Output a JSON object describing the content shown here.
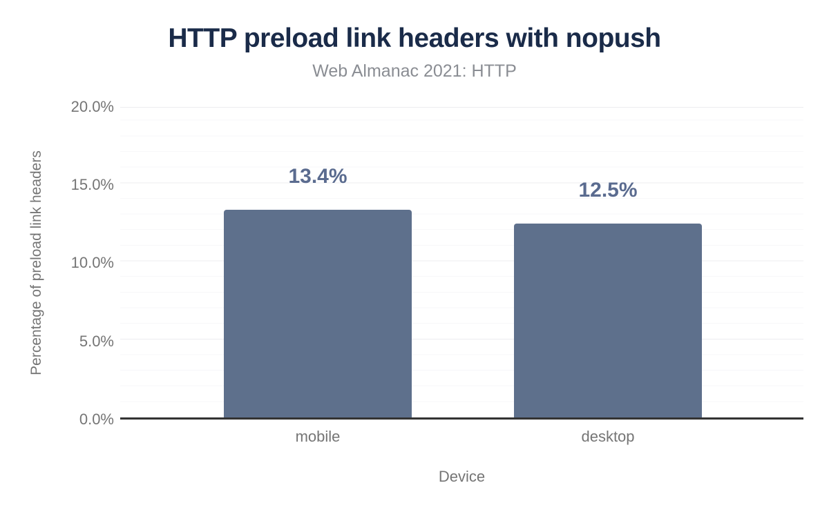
{
  "chart_data": {
    "type": "bar",
    "title": "HTTP preload link headers with nopush",
    "subtitle": "Web Almanac 2021: HTTP",
    "xlabel": "Device",
    "ylabel": "Percentage of preload link headers",
    "categories": [
      "mobile",
      "desktop"
    ],
    "values": [
      13.4,
      12.5
    ],
    "value_labels": [
      "13.4%",
      "12.5%"
    ],
    "ylim": [
      0,
      20
    ],
    "ytick_values": [
      0,
      5,
      10,
      15,
      20
    ],
    "ytick_labels": [
      "0.0%",
      "5.0%",
      "10.0%",
      "15.0%",
      "20.0%"
    ],
    "grid": {
      "orientation": "horizontal",
      "minor_step_pct": 1,
      "major_step_pct": 5
    },
    "legend_position": "none"
  },
  "colors": {
    "bar": "#5e708c",
    "value_label": "#5a6b8f",
    "title": "#1a2b49",
    "subtitle": "#8a8d93",
    "axis_text": "#757575",
    "axis_line": "#333333",
    "grid_major": "#ececef",
    "grid_minor": "#f7f7f9",
    "background": "#ffffff"
  }
}
